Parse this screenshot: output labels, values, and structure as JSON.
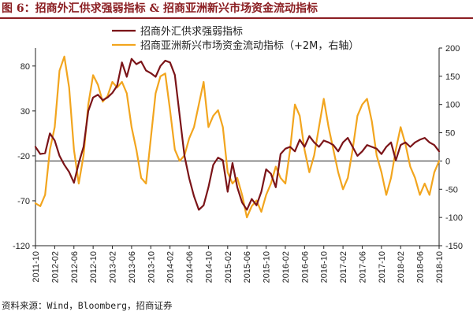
{
  "figure_title": "图 6：招商外汇供求强弱指标 & 招商亚洲新兴市场资金流动指标",
  "source_note": "资料来源：Wind，Bloomberg，招商证券",
  "colors": {
    "title": "#8b1e22",
    "fx_line": "#7b1418",
    "flow_line": "#f2a51e",
    "axis": "#222222"
  },
  "chart_data": {
    "type": "line",
    "title": "图 6：招商外汇供求强弱指标 & 招商亚洲新兴市场资金流动指标",
    "x_start": "2011-10",
    "x_end": "2018-10",
    "x_ticks": [
      "2011-10",
      "2012-02",
      "2012-06",
      "2012-10",
      "2013-02",
      "2013-06",
      "2013-10",
      "2014-02",
      "2014-06",
      "2014-10",
      "2015-02",
      "2015-06",
      "2015-10",
      "2016-02",
      "2016-06",
      "2016-10",
      "2017-02",
      "2017-06",
      "2017-10",
      "2018-02",
      "2018-06",
      "2018-10"
    ],
    "y_left": {
      "ticks": [
        -120,
        -70,
        -20,
        30,
        80
      ],
      "min": -120,
      "max": 100
    },
    "y_right": {
      "ticks": [
        -150,
        -100,
        -50,
        0,
        50,
        100,
        150,
        200
      ],
      "min": -150,
      "max": 200
    },
    "legend_position": "top",
    "grid": false,
    "series": [
      {
        "name": "招商外汇供求强弱指标",
        "axis": "left",
        "points": [
          [
            "2011-10",
            -10
          ],
          [
            "2011-11",
            -18
          ],
          [
            "2011-12",
            -17
          ],
          [
            "2012-01",
            5
          ],
          [
            "2012-02",
            -3
          ],
          [
            "2012-03",
            -20
          ],
          [
            "2012-04",
            -30
          ],
          [
            "2012-05",
            -38
          ],
          [
            "2012-06",
            -50
          ],
          [
            "2012-07",
            -28
          ],
          [
            "2012-08",
            -10
          ],
          [
            "2012-09",
            30
          ],
          [
            "2012-10",
            45
          ],
          [
            "2012-11",
            48
          ],
          [
            "2012-12",
            42
          ],
          [
            "2013-01",
            45
          ],
          [
            "2013-02",
            50
          ],
          [
            "2013-03",
            58
          ],
          [
            "2013-04",
            84
          ],
          [
            "2013-05",
            68
          ],
          [
            "2013-06",
            88
          ],
          [
            "2013-07",
            82
          ],
          [
            "2013-08",
            85
          ],
          [
            "2013-09",
            75
          ],
          [
            "2013-10",
            72
          ],
          [
            "2013-11",
            68
          ],
          [
            "2013-12",
            80
          ],
          [
            "2014-01",
            86
          ],
          [
            "2014-02",
            84
          ],
          [
            "2014-03",
            70
          ],
          [
            "2014-04",
            25
          ],
          [
            "2014-05",
            -20
          ],
          [
            "2014-06",
            -45
          ],
          [
            "2014-07",
            -65
          ],
          [
            "2014-08",
            -80
          ],
          [
            "2014-09",
            -75
          ],
          [
            "2014-10",
            -55
          ],
          [
            "2014-11",
            -30
          ],
          [
            "2014-12",
            -22
          ],
          [
            "2015-01",
            -25
          ],
          [
            "2015-02",
            -60
          ],
          [
            "2015-03",
            -28
          ],
          [
            "2015-04",
            -55
          ],
          [
            "2015-05",
            -72
          ],
          [
            "2015-06",
            -80
          ],
          [
            "2015-07",
            -68
          ],
          [
            "2015-08",
            -75
          ],
          [
            "2015-09",
            -60
          ],
          [
            "2015-10",
            -35
          ],
          [
            "2015-11",
            -40
          ],
          [
            "2015-12",
            -55
          ],
          [
            "2016-01",
            -18
          ],
          [
            "2016-02",
            -12
          ],
          [
            "2016-03",
            -10
          ],
          [
            "2016-04",
            -15
          ],
          [
            "2016-05",
            -2
          ],
          [
            "2016-06",
            -10
          ],
          [
            "2016-07",
            2
          ],
          [
            "2016-08",
            -5
          ],
          [
            "2016-09",
            -10
          ],
          [
            "2016-10",
            -3
          ],
          [
            "2016-11",
            -5
          ],
          [
            "2016-12",
            -8
          ],
          [
            "2017-01",
            -15
          ],
          [
            "2017-02",
            -5
          ],
          [
            "2017-03",
            0
          ],
          [
            "2017-04",
            -10
          ],
          [
            "2017-05",
            -20
          ],
          [
            "2017-06",
            -15
          ],
          [
            "2017-07",
            -8
          ],
          [
            "2017-08",
            -10
          ],
          [
            "2017-09",
            -12
          ],
          [
            "2017-10",
            -18
          ],
          [
            "2017-11",
            -10
          ],
          [
            "2017-12",
            -5
          ],
          [
            "2018-01",
            -25
          ],
          [
            "2018-02",
            -8
          ],
          [
            "2018-03",
            -5
          ],
          [
            "2018-04",
            -10
          ],
          [
            "2018-05",
            -5
          ],
          [
            "2018-06",
            -2
          ],
          [
            "2018-07",
            0
          ],
          [
            "2018-08",
            -5
          ],
          [
            "2018-09",
            -8
          ],
          [
            "2018-10",
            -15
          ]
        ]
      },
      {
        "name": "招商亚洲新兴市场资金流动指标（+2M，右轴）",
        "axis": "right",
        "points": [
          [
            "2011-10",
            -75
          ],
          [
            "2011-11",
            -80
          ],
          [
            "2011-12",
            -60
          ],
          [
            "2012-01",
            20
          ],
          [
            "2012-02",
            60
          ],
          [
            "2012-03",
            160
          ],
          [
            "2012-04",
            185
          ],
          [
            "2012-05",
            130
          ],
          [
            "2012-06",
            20
          ],
          [
            "2012-07",
            -40
          ],
          [
            "2012-08",
            10
          ],
          [
            "2012-09",
            100
          ],
          [
            "2012-10",
            152
          ],
          [
            "2012-11",
            135
          ],
          [
            "2012-12",
            105
          ],
          [
            "2013-01",
            115
          ],
          [
            "2013-02",
            140
          ],
          [
            "2013-03",
            130
          ],
          [
            "2013-04",
            140
          ],
          [
            "2013-05",
            120
          ],
          [
            "2013-06",
            60
          ],
          [
            "2013-07",
            20
          ],
          [
            "2013-08",
            -30
          ],
          [
            "2013-09",
            -40
          ],
          [
            "2013-10",
            40
          ],
          [
            "2013-11",
            120
          ],
          [
            "2013-12",
            150
          ],
          [
            "2014-01",
            155
          ],
          [
            "2014-02",
            90
          ],
          [
            "2014-03",
            20
          ],
          [
            "2014-04",
            0
          ],
          [
            "2014-05",
            10
          ],
          [
            "2014-06",
            40
          ],
          [
            "2014-07",
            60
          ],
          [
            "2014-08",
            100
          ],
          [
            "2014-09",
            140
          ],
          [
            "2014-10",
            60
          ],
          [
            "2014-11",
            80
          ],
          [
            "2014-12",
            90
          ],
          [
            "2015-01",
            60
          ],
          [
            "2015-02",
            -20
          ],
          [
            "2015-03",
            -40
          ],
          [
            "2015-04",
            -30
          ],
          [
            "2015-05",
            -60
          ],
          [
            "2015-06",
            -100
          ],
          [
            "2015-07",
            -80
          ],
          [
            "2015-08",
            -70
          ],
          [
            "2015-09",
            -90
          ],
          [
            "2015-10",
            -60
          ],
          [
            "2015-11",
            -40
          ],
          [
            "2015-12",
            -10
          ],
          [
            "2016-01",
            -30
          ],
          [
            "2016-02",
            -40
          ],
          [
            "2016-03",
            20
          ],
          [
            "2016-04",
            100
          ],
          [
            "2016-05",
            80
          ],
          [
            "2016-06",
            20
          ],
          [
            "2016-07",
            -20
          ],
          [
            "2016-08",
            10
          ],
          [
            "2016-09",
            60
          ],
          [
            "2016-10",
            110
          ],
          [
            "2016-11",
            60
          ],
          [
            "2016-12",
            20
          ],
          [
            "2017-01",
            -20
          ],
          [
            "2017-02",
            -50
          ],
          [
            "2017-03",
            -30
          ],
          [
            "2017-04",
            20
          ],
          [
            "2017-05",
            80
          ],
          [
            "2017-06",
            100
          ],
          [
            "2017-07",
            110
          ],
          [
            "2017-08",
            70
          ],
          [
            "2017-09",
            10
          ],
          [
            "2017-10",
            -20
          ],
          [
            "2017-11",
            -60
          ],
          [
            "2017-12",
            -30
          ],
          [
            "2018-01",
            20
          ],
          [
            "2018-02",
            60
          ],
          [
            "2018-03",
            30
          ],
          [
            "2018-04",
            -10
          ],
          [
            "2018-05",
            -30
          ],
          [
            "2018-06",
            -60
          ],
          [
            "2018-07",
            -40
          ],
          [
            "2018-08",
            -60
          ],
          [
            "2018-09",
            -20
          ],
          [
            "2018-10",
            0
          ]
        ]
      }
    ]
  }
}
